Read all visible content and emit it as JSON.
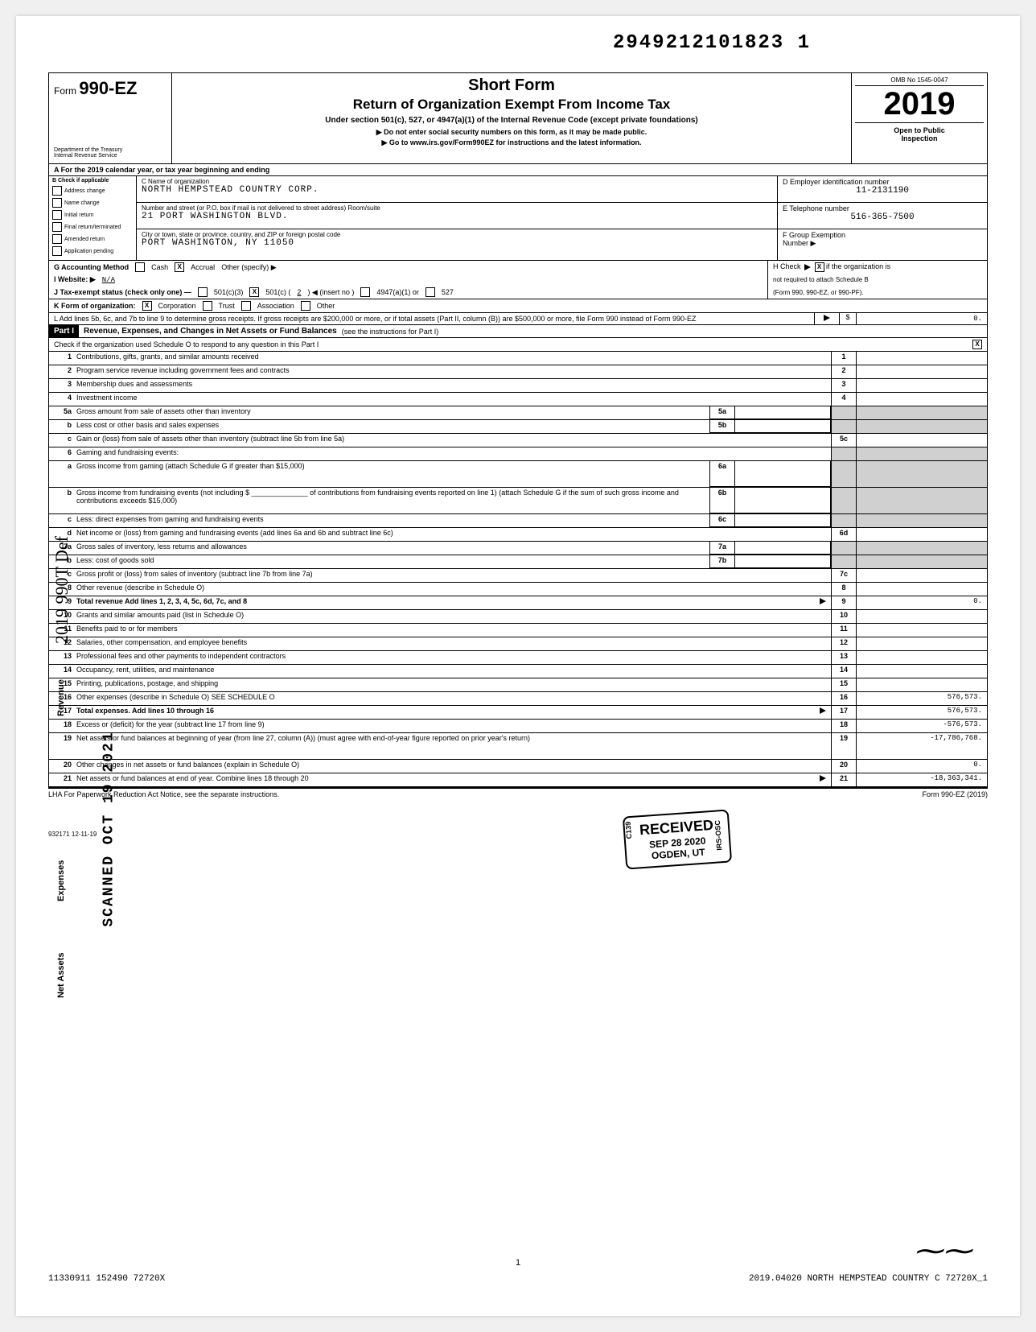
{
  "top_tracking": "29492121​01823  1",
  "form": {
    "label_prefix": "Form",
    "number": "990-EZ",
    "dept": "Department of the Treasury",
    "irs": "Internal Revenue Service"
  },
  "title": {
    "line1": "Short Form",
    "line2": "Return of Organization Exempt From Income Tax",
    "sub": "Under section 501(c), 527, or 4947(a)(1) of the Internal Revenue Code (except private foundations)",
    "hint1": "▶ Do not enter social security numbers on this form, as it may be made public.",
    "hint2": "▶ Go to www.irs.gov/Form990EZ for instructions and the latest information."
  },
  "year_col": {
    "omb": "OMB No 1545-0047",
    "year": "2019",
    "open1": "Open to Public",
    "open2": "Inspection"
  },
  "line_a": "A  For the 2019 calendar year, or tax year beginning                                                                         and ending",
  "col_b": {
    "header": "B  Check if applicable",
    "items": [
      "Address change",
      "Name change",
      "Initial return",
      "Final return/terminated",
      "Amended return",
      "Application pending"
    ]
  },
  "col_c": {
    "name_lbl": "C Name of organization",
    "name_val": "NORTH HEMPSTEAD COUNTRY CORP.",
    "street_lbl": "Number and street (or P.O. box if mail is not delivered to street address)                        Room/suite",
    "street_val": "21 PORT WASHINGTON BLVD.",
    "city_lbl": "City or town, state or province, country, and ZIP or foreign postal code",
    "city_val": "PORT WASHINGTON, NY  11050"
  },
  "col_de": {
    "d_lbl": "D Employer identification number",
    "d_val": "11-2131190",
    "e_lbl": "E  Telephone number",
    "e_val": "516-365-7500",
    "f_lbl": "F  Group Exemption",
    "f_lbl2": "Number ▶"
  },
  "line_g": {
    "label": "G  Accounting Method",
    "cash": "Cash",
    "accrual": "Accrual",
    "other": "Other (specify) ▶",
    "accrual_checked": "X"
  },
  "line_h": "H Check ▶        if the organization is not required to attach Schedule B (Form 990, 990-EZ, or 990-PF).",
  "line_h_checked": "X",
  "line_i": {
    "label": "I   Website: ▶",
    "val": "N/A"
  },
  "line_j": {
    "label": "J   Tax-exempt status (check only one)  —",
    "c3": "501(c)(3)",
    "c": "501(c) (",
    "cval": "2",
    "cins": ") ◀ (insert no )",
    "d": "4947(a)(1) or",
    "e": "527",
    "c_checked": "X"
  },
  "line_k": {
    "label": "K  Form of organization:",
    "corp": "Corporation",
    "trust": "Trust",
    "assoc": "Association",
    "other": "Other",
    "corp_checked": "X"
  },
  "line_l": "L  Add lines 5b, 6c, and 7b to line 9 to determine gross receipts. If gross receipts are $200,000 or more, or if total assets (Part II, column (B)) are $500,000 or more, file Form 990 instead of Form 990-EZ",
  "line_l_val": "0.",
  "part1": {
    "label": "Part I",
    "title": "Revenue, Expenses, and Changes in Net Assets or Fund Balances",
    "instr": "(see the instructions for Part I)",
    "check_line": "Check if the organization used Schedule O to respond to any question in this Part I",
    "checked": "X"
  },
  "rows": [
    {
      "n": "1",
      "d": "Contributions, gifts, grants, and similar amounts received",
      "rn": "1",
      "rv": ""
    },
    {
      "n": "2",
      "d": "Program service revenue including government fees and contracts",
      "rn": "2",
      "rv": ""
    },
    {
      "n": "3",
      "d": "Membership dues and assessments",
      "rn": "3",
      "rv": ""
    },
    {
      "n": "4",
      "d": "Investment income",
      "rn": "4",
      "rv": ""
    },
    {
      "n": "5a",
      "d": "Gross amount from sale of assets other than inventory",
      "mid": "5a",
      "rv": "",
      "shade": true
    },
    {
      "n": "b",
      "d": "Less  cost or other basis and sales expenses",
      "mid": "5b",
      "rv": "",
      "shade": true
    },
    {
      "n": "c",
      "d": "Gain or (loss) from sale of assets other than inventory (subtract line 5b from line 5a)",
      "rn": "5c",
      "rv": ""
    },
    {
      "n": "6",
      "d": "Gaming and fundraising events:",
      "shade": true,
      "noamt": true
    },
    {
      "n": "a",
      "d": "Gross income from gaming (attach Schedule G if greater than $15,000)",
      "mid": "6a",
      "rv": "",
      "shade": true,
      "tall": true
    },
    {
      "n": "b",
      "d": "Gross income from fundraising events (not including $ ______________ of contributions from fundraising events reported on line 1) (attach Schedule G if the sum of such gross income and contributions exceeds $15,000)",
      "mid": "6b",
      "rv": "",
      "shade": true,
      "tall": true
    },
    {
      "n": "c",
      "d": "Less: direct expenses from gaming and fundraising events",
      "mid": "6c",
      "rv": "",
      "shade": true
    },
    {
      "n": "d",
      "d": "Net income or (loss) from gaming and fundraising events (add lines 6a and 6b and subtract line 6c)",
      "rn": "6d",
      "rv": ""
    },
    {
      "n": "7a",
      "d": "Gross sales of inventory, less returns and allowances",
      "mid": "7a",
      "rv": "",
      "shade": true
    },
    {
      "n": "b",
      "d": "Less: cost of goods sold",
      "mid": "7b",
      "rv": "",
      "shade": true
    },
    {
      "n": "c",
      "d": "Gross profit or (loss) from sales of inventory (subtract line 7b from line 7a)",
      "rn": "7c",
      "rv": ""
    },
    {
      "n": "8",
      "d": "Other revenue (describe in Schedule O)",
      "rn": "8",
      "rv": ""
    },
    {
      "n": "9",
      "d": "Total revenue  Add lines 1, 2, 3, 4, 5c, 6d, 7c, and 8",
      "rn": "9",
      "rv": "0.",
      "bold": true,
      "arrow": true
    },
    {
      "n": "10",
      "d": "Grants and similar amounts paid (list in Schedule O)",
      "rn": "10",
      "rv": ""
    },
    {
      "n": "11",
      "d": "Benefits paid to or for members",
      "rn": "11",
      "rv": ""
    },
    {
      "n": "12",
      "d": "Salaries, other compensation, and employee benefits",
      "rn": "12",
      "rv": ""
    },
    {
      "n": "13",
      "d": "Professional fees and other payments to independent contractors",
      "rn": "13",
      "rv": ""
    },
    {
      "n": "14",
      "d": "Occupancy, rent, utilities, and maintenance",
      "rn": "14",
      "rv": ""
    },
    {
      "n": "15",
      "d": "Printing, publications, postage, and shipping",
      "rn": "15",
      "rv": ""
    },
    {
      "n": "16",
      "d": "Other expenses (describe in Schedule O)                                          SEE SCHEDULE O",
      "rn": "16",
      "rv": "576,573."
    },
    {
      "n": "17",
      "d": "Total expenses. Add lines 10 through 16",
      "rn": "17",
      "rv": "576,573.",
      "bold": true,
      "arrow": true
    },
    {
      "n": "18",
      "d": "Excess or (deficit) for the year (subtract line 17 from line 9)",
      "rn": "18",
      "rv": "-576,573."
    },
    {
      "n": "19",
      "d": "Net assets or fund balances at beginning of year (from line 27, column (A)) (must agree with end-of-year figure reported on prior year's return)",
      "rn": "19",
      "rv": "-17,786,768.",
      "tall": true
    },
    {
      "n": "20",
      "d": "Other changes in net assets or fund balances (explain in Schedule O)",
      "rn": "20",
      "rv": "0."
    },
    {
      "n": "21",
      "d": "Net assets or fund balances at end of year. Combine lines 18 through 20",
      "rn": "21",
      "rv": "-18,363,341.",
      "arrow": true
    }
  ],
  "side_labels": {
    "rev": "Revenue",
    "exp": "Expenses",
    "na": "Net Assets"
  },
  "stamp": {
    "l1": "RECEIVED",
    "l2": "SEP 28 2020",
    "l3": "OGDEN, UT",
    "side1": "C139",
    "side2": "IRS-OSC"
  },
  "hand_left": "2019 990T Def",
  "scanned": "SCANNED  OCT 19 2021",
  "footer": {
    "lha": "LHA  For Paperwork Reduction Act Notice, see the separate instructions.",
    "formref": "Form 990-EZ (2019)",
    "code": "932171  12-11-19",
    "page": "1",
    "bottom_left": "11330911 152490 72720X",
    "bottom_right": "2019.04020 NORTH HEMPSTEAD COUNTRY C 72720X_1"
  }
}
